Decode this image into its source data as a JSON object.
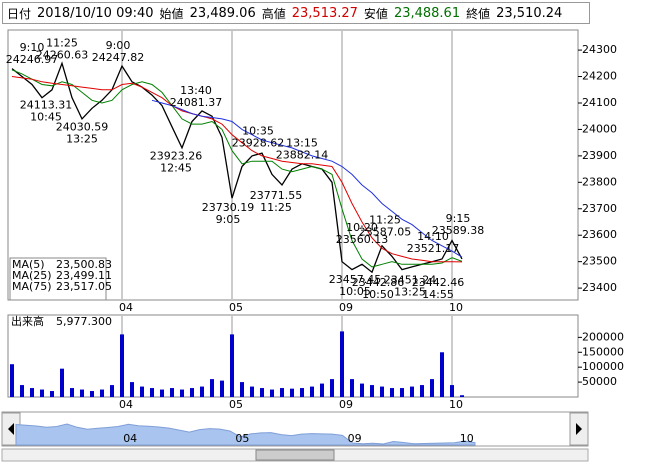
{
  "header": {
    "date_label": "日付",
    "date": "2018/10/10 09:40",
    "items": [
      {
        "label": "始値",
        "value": "23,489.06"
      },
      {
        "label": "高値",
        "value": "23,513.27"
      },
      {
        "label": "安値",
        "value": "23,488.61"
      },
      {
        "label": "終値",
        "value": "23,510.24"
      }
    ]
  },
  "chart_data": [
    {
      "type": "line",
      "xlim": [
        -0.4,
        56.6
      ],
      "xticks": [
        {
          "value": 11,
          "label": "04"
        },
        {
          "value": 22,
          "label": "05"
        },
        {
          "value": 33,
          "label": "09"
        },
        {
          "value": 44,
          "label": "10"
        }
      ],
      "ylim": [
        23355,
        24376
      ],
      "yticks": [
        23400,
        23500,
        23600,
        23700,
        23800,
        23900,
        24000,
        24100,
        24200,
        24300
      ],
      "grid": true,
      "series": [
        {
          "color": "#000000",
          "values": [
            24230,
            24200,
            24170,
            24120,
            24150,
            24250,
            24120,
            24040,
            24080,
            24110,
            24150,
            24240,
            24180,
            24160,
            24130,
            24090,
            24010,
            23930,
            24030,
            24070,
            24050,
            23970,
            23740,
            23860,
            23900,
            23910,
            23830,
            23790,
            23850,
            23870,
            23860,
            23850,
            23800,
            23500,
            23470,
            23490,
            23460,
            23560,
            23520,
            23470,
            23480,
            23490,
            23500,
            23510,
            23580,
            23510
          ]
        },
        {
          "name": "MA(5)",
          "color": "#008000",
          "current": {
            "value": 23500.83,
            "label": "23,500.83"
          },
          "values": [
            24225,
            24210,
            24190,
            24170,
            24165,
            24180,
            24170,
            24140,
            24110,
            24100,
            24110,
            24150,
            24170,
            24180,
            24170,
            24140,
            24090,
            24040,
            24020,
            24020,
            24030,
            24000,
            23920,
            23870,
            23880,
            23880,
            23880,
            23850,
            23840,
            23850,
            23860,
            23850,
            23830,
            23700,
            23580,
            23510,
            23480,
            23490,
            23500,
            23490,
            23490,
            23490,
            23490,
            23495,
            23515,
            23500.83
          ]
        },
        {
          "name": "MA(25)",
          "color": "#e00000",
          "current": {
            "value": 23499.11,
            "label": "23,499.11"
          },
          "values": [
            24200,
            24195,
            24190,
            24180,
            24175,
            24170,
            24165,
            24160,
            24155,
            24150,
            24150,
            24170,
            24175,
            24160,
            24140,
            24120,
            24090,
            24070,
            24060,
            24050,
            24040,
            24020,
            23980,
            23950,
            23920,
            23900,
            23890,
            23880,
            23875,
            23870,
            23870,
            23865,
            23860,
            23800,
            23720,
            23650,
            23590,
            23550,
            23530,
            23520,
            23510,
            23505,
            23500,
            23500,
            23500,
            23499.11
          ]
        },
        {
          "name": "MA(75)",
          "color": "#2030e0",
          "current": {
            "value": 23517.05,
            "label": "23,517.05"
          },
          "values": [
            null,
            null,
            null,
            null,
            null,
            null,
            null,
            null,
            null,
            null,
            null,
            null,
            null,
            null,
            24110,
            24100,
            24090,
            24075,
            24060,
            24050,
            24045,
            24040,
            24030,
            24000,
            23980,
            23960,
            23950,
            23940,
            23930,
            23915,
            23900,
            23890,
            23880,
            23860,
            23830,
            23790,
            23760,
            23720,
            23690,
            23660,
            23640,
            23610,
            23580,
            23560,
            23540,
            23517.05
          ]
        }
      ],
      "annotations": [
        {
          "time": "9:10",
          "value": 24246.97
        },
        {
          "time": "11:25",
          "value": 24260.63
        },
        {
          "time": "9:00",
          "value": 24247.82
        },
        {
          "time": "10:45",
          "value": 24113.31
        },
        {
          "time": "13:25",
          "value": 24030.59
        },
        {
          "time": "13:40",
          "value": 24081.37
        },
        {
          "time": "12:45",
          "value": 23923.26
        },
        {
          "time": "10:35",
          "value": 23928.62
        },
        {
          "time": "13:15",
          "value": 23882.14
        },
        {
          "time": "11:25",
          "value": 23771.55
        },
        {
          "time": "9:05",
          "value": 23730.19
        },
        {
          "time": "11:25",
          "value": 23587.05
        },
        {
          "time": "10:20",
          "value": 23560.13
        },
        {
          "time": "9:15",
          "value": 23589.38
        },
        {
          "time": "14:10",
          "value": 23521.17
        },
        {
          "time": "10:05",
          "value": 23457.45
        },
        {
          "time": "10:50",
          "value": 23442.86
        },
        {
          "time": "13:25",
          "value": 23451.24
        },
        {
          "time": "14:55",
          "value": 23442.46
        }
      ]
    },
    {
      "type": "bar",
      "title": "出来高",
      "current": {
        "value": 5977.3,
        "label": "5,977.300"
      },
      "color": "#0000cc",
      "ylim": [
        0,
        275000
      ],
      "yticks": [
        50000,
        100000,
        150000,
        200000
      ],
      "values": [
        110000,
        40000,
        30000,
        25000,
        20000,
        95000,
        30000,
        25000,
        20000,
        25000,
        40000,
        210000,
        50000,
        35000,
        30000,
        25000,
        30000,
        25000,
        30000,
        35000,
        60000,
        55000,
        210000,
        50000,
        35000,
        30000,
        25000,
        30000,
        28000,
        30000,
        35000,
        45000,
        60000,
        220000,
        60000,
        45000,
        40000,
        35000,
        30000,
        30000,
        35000,
        40000,
        60000,
        150000,
        40000,
        5977.3
      ]
    }
  ]
}
